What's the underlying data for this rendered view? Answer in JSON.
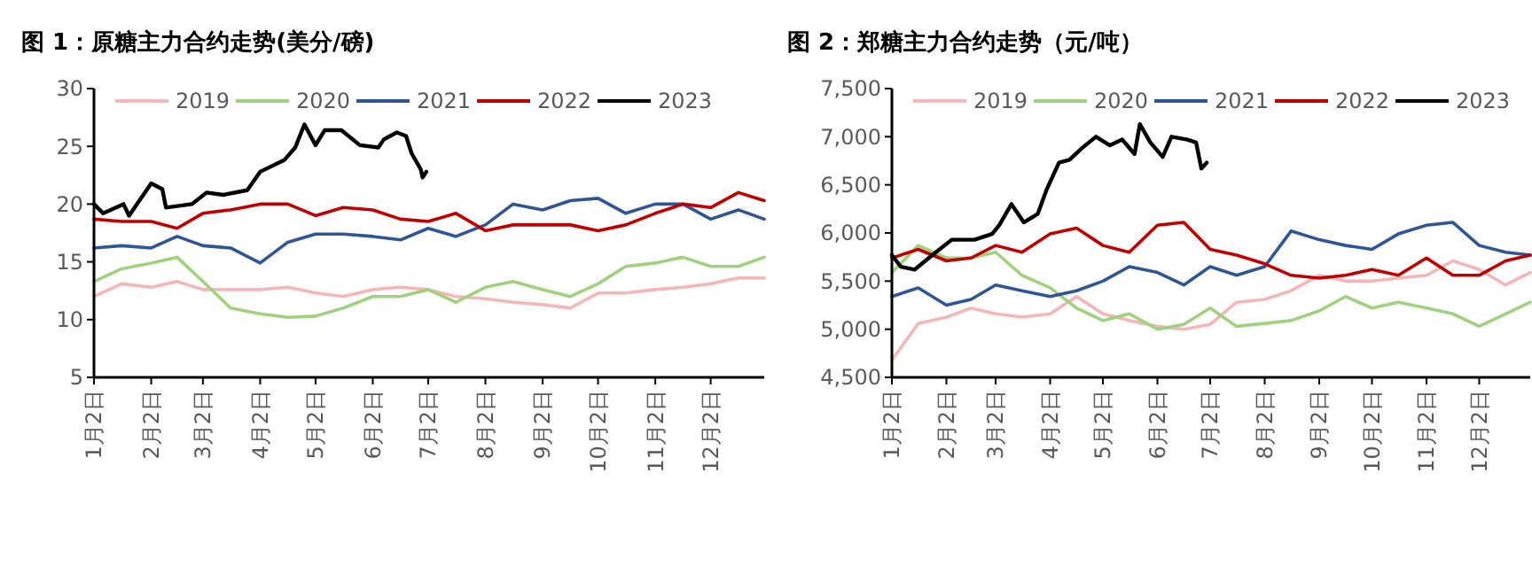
{
  "chart_data": [
    {
      "type": "line",
      "title": "图 1：原糖主力合约走势(美分/磅)",
      "legend": "top",
      "grid": false,
      "line_style": "solid",
      "x": [
        "--01-02",
        "--01-17",
        "--02-02",
        "--02-16",
        "--03-02",
        "--03-17",
        "--04-02",
        "--04-17",
        "--05-02",
        "--05-17",
        "--06-02",
        "--06-17",
        "--07-02",
        "--07-17",
        "--08-02",
        "--08-17",
        "--09-02",
        "--09-17",
        "--10-02",
        "--10-17",
        "--11-02",
        "--11-17",
        "--12-02",
        "--12-17",
        "--12-31"
      ],
      "xlim": [
        "--01-02",
        "--12-31"
      ],
      "xticks": [
        {
          "value": "--01-02",
          "label": "1月2日"
        },
        {
          "value": "--02-02",
          "label": "2月2日"
        },
        {
          "value": "--03-02",
          "label": "3月2日"
        },
        {
          "value": "--04-02",
          "label": "4月2日"
        },
        {
          "value": "--05-02",
          "label": "5月2日"
        },
        {
          "value": "--06-02",
          "label": "6月2日"
        },
        {
          "value": "--07-02",
          "label": "7月2日"
        },
        {
          "value": "--08-02",
          "label": "8月2日"
        },
        {
          "value": "--09-02",
          "label": "9月2日"
        },
        {
          "value": "--10-02",
          "label": "10月2日"
        },
        {
          "value": "--11-02",
          "label": "11月2日"
        },
        {
          "value": "--12-02",
          "label": "12月2日"
        }
      ],
      "ylim": [
        5,
        30
      ],
      "yticks": [
        5,
        10,
        15,
        20,
        25,
        30
      ],
      "series": [
        {
          "name": "2019",
          "color": "#f4b6b6",
          "values": [
            12,
            13.1,
            12.8,
            13.3,
            12.6,
            12.6,
            12.6,
            12.8,
            12.3,
            12,
            12.6,
            12.8,
            12.6,
            12,
            11.8,
            11.5,
            11.3,
            11,
            12.3,
            12.3,
            12.6,
            12.8,
            13.1,
            13.6,
            13.6
          ]
        },
        {
          "name": "2020",
          "color": "#9fd17f",
          "values": [
            13.3,
            14.4,
            14.9,
            15.4,
            13.3,
            11,
            10.5,
            10.2,
            10.3,
            11,
            12,
            12,
            12.6,
            11.5,
            12.8,
            13.3,
            12.6,
            12,
            13.1,
            14.6,
            14.9,
            15.4,
            14.6,
            14.6,
            15.4
          ]
        },
        {
          "name": "2021",
          "color": "#2f5597",
          "values": [
            16.2,
            16.4,
            16.2,
            17.2,
            16.4,
            16.2,
            14.9,
            16.7,
            17.4,
            17.4,
            17.2,
            16.9,
            17.9,
            17.2,
            18.2,
            20,
            19.5,
            20.3,
            20.5,
            19.2,
            20,
            20,
            18.7,
            19.5,
            18.7
          ]
        },
        {
          "name": "2022",
          "color": "#c00000",
          "values": [
            18.7,
            18.5,
            18.5,
            17.9,
            19.2,
            19.5,
            20,
            20,
            19,
            19.7,
            19.5,
            18.7,
            18.5,
            19.2,
            17.7,
            18.2,
            18.2,
            18.2,
            17.7,
            18.2,
            19.2,
            20,
            19.7,
            21,
            20.3
          ]
        },
        {
          "name": "2023",
          "color": "#000000",
          "x": [
            "--01-02",
            "--01-07",
            "--01-18",
            "--01-21",
            "--02-02",
            "--02-08",
            "--02-10",
            "--02-24",
            "--03-04",
            "--03-13",
            "--03-26",
            "--04-02",
            "--04-15",
            "--04-21",
            "--04-26",
            "--05-02",
            "--05-07",
            "--05-16",
            "--05-26",
            "--06-05",
            "--06-08",
            "--06-15",
            "--06-20",
            "--06-23",
            "--06-28",
            "--06-29",
            "--07-01"
          ],
          "values": [
            20,
            19.2,
            20,
            19,
            21.8,
            21.3,
            19.7,
            20,
            21,
            20.8,
            21.2,
            22.8,
            23.8,
            24.9,
            26.9,
            25.1,
            26.4,
            26.4,
            25.1,
            24.9,
            25.6,
            26.2,
            25.9,
            24.4,
            23,
            22.3,
            22.8
          ]
        }
      ]
    },
    {
      "type": "line",
      "title": "图 2：郑糖主力合约走势（元/吨）",
      "legend": "top",
      "grid": false,
      "line_style": "solid",
      "x": [
        "--01-02",
        "--01-17",
        "--02-02",
        "--02-16",
        "--03-02",
        "--03-17",
        "--04-02",
        "--04-17",
        "--05-02",
        "--05-17",
        "--06-02",
        "--06-17",
        "--07-02",
        "--07-17",
        "--08-02",
        "--08-17",
        "--09-02",
        "--09-17",
        "--10-02",
        "--10-17",
        "--11-02",
        "--11-17",
        "--12-02",
        "--12-17",
        "--12-31"
      ],
      "xlim": [
        "--01-02",
        "--12-31"
      ],
      "xticks": [
        {
          "value": "--01-02",
          "label": "1月2日"
        },
        {
          "value": "--02-02",
          "label": "2月2日"
        },
        {
          "value": "--03-02",
          "label": "3月2日"
        },
        {
          "value": "--04-02",
          "label": "4月2日"
        },
        {
          "value": "--05-02",
          "label": "5月2日"
        },
        {
          "value": "--06-02",
          "label": "6月2日"
        },
        {
          "value": "--07-02",
          "label": "7月2日"
        },
        {
          "value": "--08-02",
          "label": "8月2日"
        },
        {
          "value": "--09-02",
          "label": "9月2日"
        },
        {
          "value": "--10-02",
          "label": "10月2日"
        },
        {
          "value": "--11-02",
          "label": "11月2日"
        },
        {
          "value": "--12-02",
          "label": "12月2日"
        }
      ],
      "ylim": [
        4500,
        7500
      ],
      "yticks": [
        {
          "value": 4500,
          "label": "4,500"
        },
        {
          "value": 5000,
          "label": "5,000"
        },
        {
          "value": 5500,
          "label": "5,500"
        },
        {
          "value": 6000,
          "label": "6,000"
        },
        {
          "value": 6500,
          "label": "6,500"
        },
        {
          "value": 7000,
          "label": "7,000"
        },
        {
          "value": 7500,
          "label": "7,500"
        }
      ],
      "series": [
        {
          "name": "2019",
          "color": "#f4b6b6",
          "values": [
            4680,
            5060,
            5125,
            5220,
            5160,
            5125,
            5160,
            5340,
            5160,
            5090,
            5030,
            5000,
            5050,
            5280,
            5310,
            5400,
            5560,
            5500,
            5500,
            5530,
            5560,
            5710,
            5620,
            5460,
            5590
          ]
        },
        {
          "name": "2020",
          "color": "#9fd17f",
          "values": [
            5590,
            5870,
            5740,
            5740,
            5800,
            5560,
            5430,
            5220,
            5090,
            5160,
            5000,
            5050,
            5220,
            5030,
            5060,
            5090,
            5190,
            5340,
            5220,
            5280,
            5220,
            5160,
            5030,
            5160,
            5280
          ]
        },
        {
          "name": "2021",
          "color": "#2f5597",
          "values": [
            5340,
            5430,
            5250,
            5310,
            5460,
            5400,
            5340,
            5400,
            5500,
            5650,
            5590,
            5460,
            5650,
            5560,
            5650,
            6020,
            5930,
            5870,
            5830,
            5990,
            6080,
            6110,
            5870,
            5800,
            5770
          ]
        },
        {
          "name": "2022",
          "color": "#c00000",
          "values": [
            5740,
            5830,
            5710,
            5740,
            5870,
            5800,
            5990,
            6050,
            5870,
            5800,
            6080,
            6110,
            5830,
            5770,
            5680,
            5560,
            5530,
            5560,
            5620,
            5560,
            5740,
            5560,
            5560,
            5710,
            5770
          ]
        },
        {
          "name": "2023",
          "color": "#000000",
          "x": [
            "--01-02",
            "--01-07",
            "--01-15",
            "--01-25",
            "--02-05",
            "--02-18",
            "--02-28",
            "--03-04",
            "--03-11",
            "--03-18",
            "--03-26",
            "--03-31",
            "--04-07",
            "--04-13",
            "--04-20",
            "--04-28",
            "--05-06",
            "--05-13",
            "--05-20",
            "--05-23",
            "--05-29",
            "--06-05",
            "--06-10",
            "--06-19",
            "--06-24",
            "--06-27",
            "--06-30"
          ],
          "values": [
            5770,
            5650,
            5620,
            5770,
            5930,
            5930,
            5990,
            6080,
            6300,
            6110,
            6200,
            6450,
            6730,
            6760,
            6880,
            7000,
            6910,
            6970,
            6820,
            7130,
            6940,
            6790,
            7000,
            6970,
            6940,
            6670,
            6730
          ]
        }
      ]
    }
  ]
}
